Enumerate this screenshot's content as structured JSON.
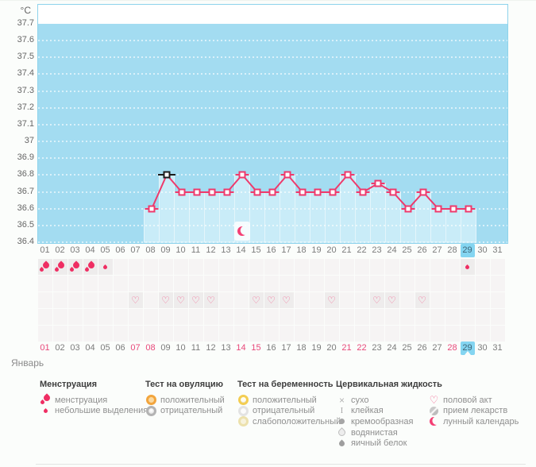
{
  "unit_label": "°C",
  "month_label": "Январь",
  "today_day": 29,
  "y_axis_labels": [
    "37.7",
    "37.6",
    "37.5",
    "37.4",
    "37.3",
    "37.2",
    "37.1",
    "37",
    "36.9",
    "36.8",
    "36.7",
    "36.6",
    "36.5",
    "36.4"
  ],
  "day_numbers": [
    "01",
    "02",
    "03",
    "04",
    "05",
    "06",
    "07",
    "08",
    "09",
    "10",
    "11",
    "12",
    "13",
    "14",
    "15",
    "16",
    "17",
    "18",
    "19",
    "20",
    "21",
    "22",
    "23",
    "24",
    "25",
    "26",
    "27",
    "28",
    "29",
    "30",
    "31"
  ],
  "chart_data": {
    "type": "line",
    "ylabel": "°C",
    "ylim": [
      36.4,
      37.7
    ],
    "y_tick_step": 0.1,
    "x_range_days": [
      1,
      31
    ],
    "grid": true,
    "points": [
      {
        "day": 8,
        "temp": 36.6
      },
      {
        "day": 9,
        "temp": 36.8
      },
      {
        "day": 10,
        "temp": 36.7
      },
      {
        "day": 11,
        "temp": 36.7
      },
      {
        "day": 12,
        "temp": 36.7
      },
      {
        "day": 13,
        "temp": 36.7
      },
      {
        "day": 14,
        "temp": 36.8
      },
      {
        "day": 15,
        "temp": 36.7
      },
      {
        "day": 16,
        "temp": 36.7
      },
      {
        "day": 17,
        "temp": 36.8
      },
      {
        "day": 18,
        "temp": 36.7
      },
      {
        "day": 19,
        "temp": 36.7
      },
      {
        "day": 20,
        "temp": 36.7
      },
      {
        "day": 21,
        "temp": 36.8
      },
      {
        "day": 22,
        "temp": 36.7
      },
      {
        "day": 23,
        "temp": 36.75
      },
      {
        "day": 24,
        "temp": 36.7
      },
      {
        "day": 25,
        "temp": 36.6
      },
      {
        "day": 26,
        "temp": 36.7
      },
      {
        "day": 27,
        "temp": 36.6
      },
      {
        "day": 28,
        "temp": 36.6
      },
      {
        "day": 29,
        "temp": 36.6
      }
    ],
    "ovulation_line_day": 9,
    "moon_icon_day": 14,
    "highlighted_day": 29
  },
  "events": {
    "menstruation_days": [
      1,
      2,
      3,
      4
    ],
    "spotting_days": [
      5,
      29
    ],
    "intercourse_days": [
      7,
      9,
      10,
      11,
      12,
      15,
      16,
      17,
      20,
      23,
      24,
      26
    ],
    "weekend_days": [
      1,
      7,
      8,
      14,
      15,
      21,
      22,
      28
    ]
  },
  "legend": {
    "sections": [
      {
        "title": "Менструация",
        "items": [
          {
            "icon": "menstruation-drop-icon",
            "label": "менструация"
          },
          {
            "icon": "spotting-drop-icon",
            "label": "небольшие выделения"
          }
        ]
      },
      {
        "title": "Тест на овуляцию",
        "items": [
          {
            "icon": "ovulation-test-positive-icon",
            "label": "положительный"
          },
          {
            "icon": "ovulation-test-negative-icon",
            "label": "отрицательный"
          }
        ]
      },
      {
        "title": "Тест на беременность",
        "items": [
          {
            "icon": "pregnancy-test-positive-icon",
            "label": "положительный"
          },
          {
            "icon": "pregnancy-test-negative-icon",
            "label": "отрицательный"
          },
          {
            "icon": "pregnancy-test-weak-positive-icon",
            "label": "слабоположительный"
          }
        ]
      },
      {
        "title": "Цервикальная жидкость",
        "items": [
          {
            "icon": "dry-icon",
            "label": "сухо"
          },
          {
            "icon": "sticky-icon",
            "label": "клейкая"
          },
          {
            "icon": "creamy-icon",
            "label": "кремообразная"
          },
          {
            "icon": "watery-icon",
            "label": "водянистая"
          },
          {
            "icon": "egg-white-icon",
            "label": "яичный белок"
          }
        ]
      },
      {
        "title": "",
        "items": [
          {
            "icon": "intercourse-heart-icon",
            "label": "половой акт"
          },
          {
            "icon": "medication-pill-icon",
            "label": "прием лекарств"
          },
          {
            "icon": "lunar-calendar-moon-icon",
            "label": "лунный календарь"
          }
        ]
      }
    ]
  },
  "colors": {
    "chart_area": "#a3dcf1",
    "bar": "#c9ecf8",
    "bar_edge": "#e4f5fb",
    "line": "#ee3a6c",
    "ovulation_marker": "#1c1c1c",
    "today_highlight": "#84d5f1",
    "weekend_text": "#e8487a",
    "menstruation": "#ef2e63",
    "heart": "#f2638f"
  }
}
